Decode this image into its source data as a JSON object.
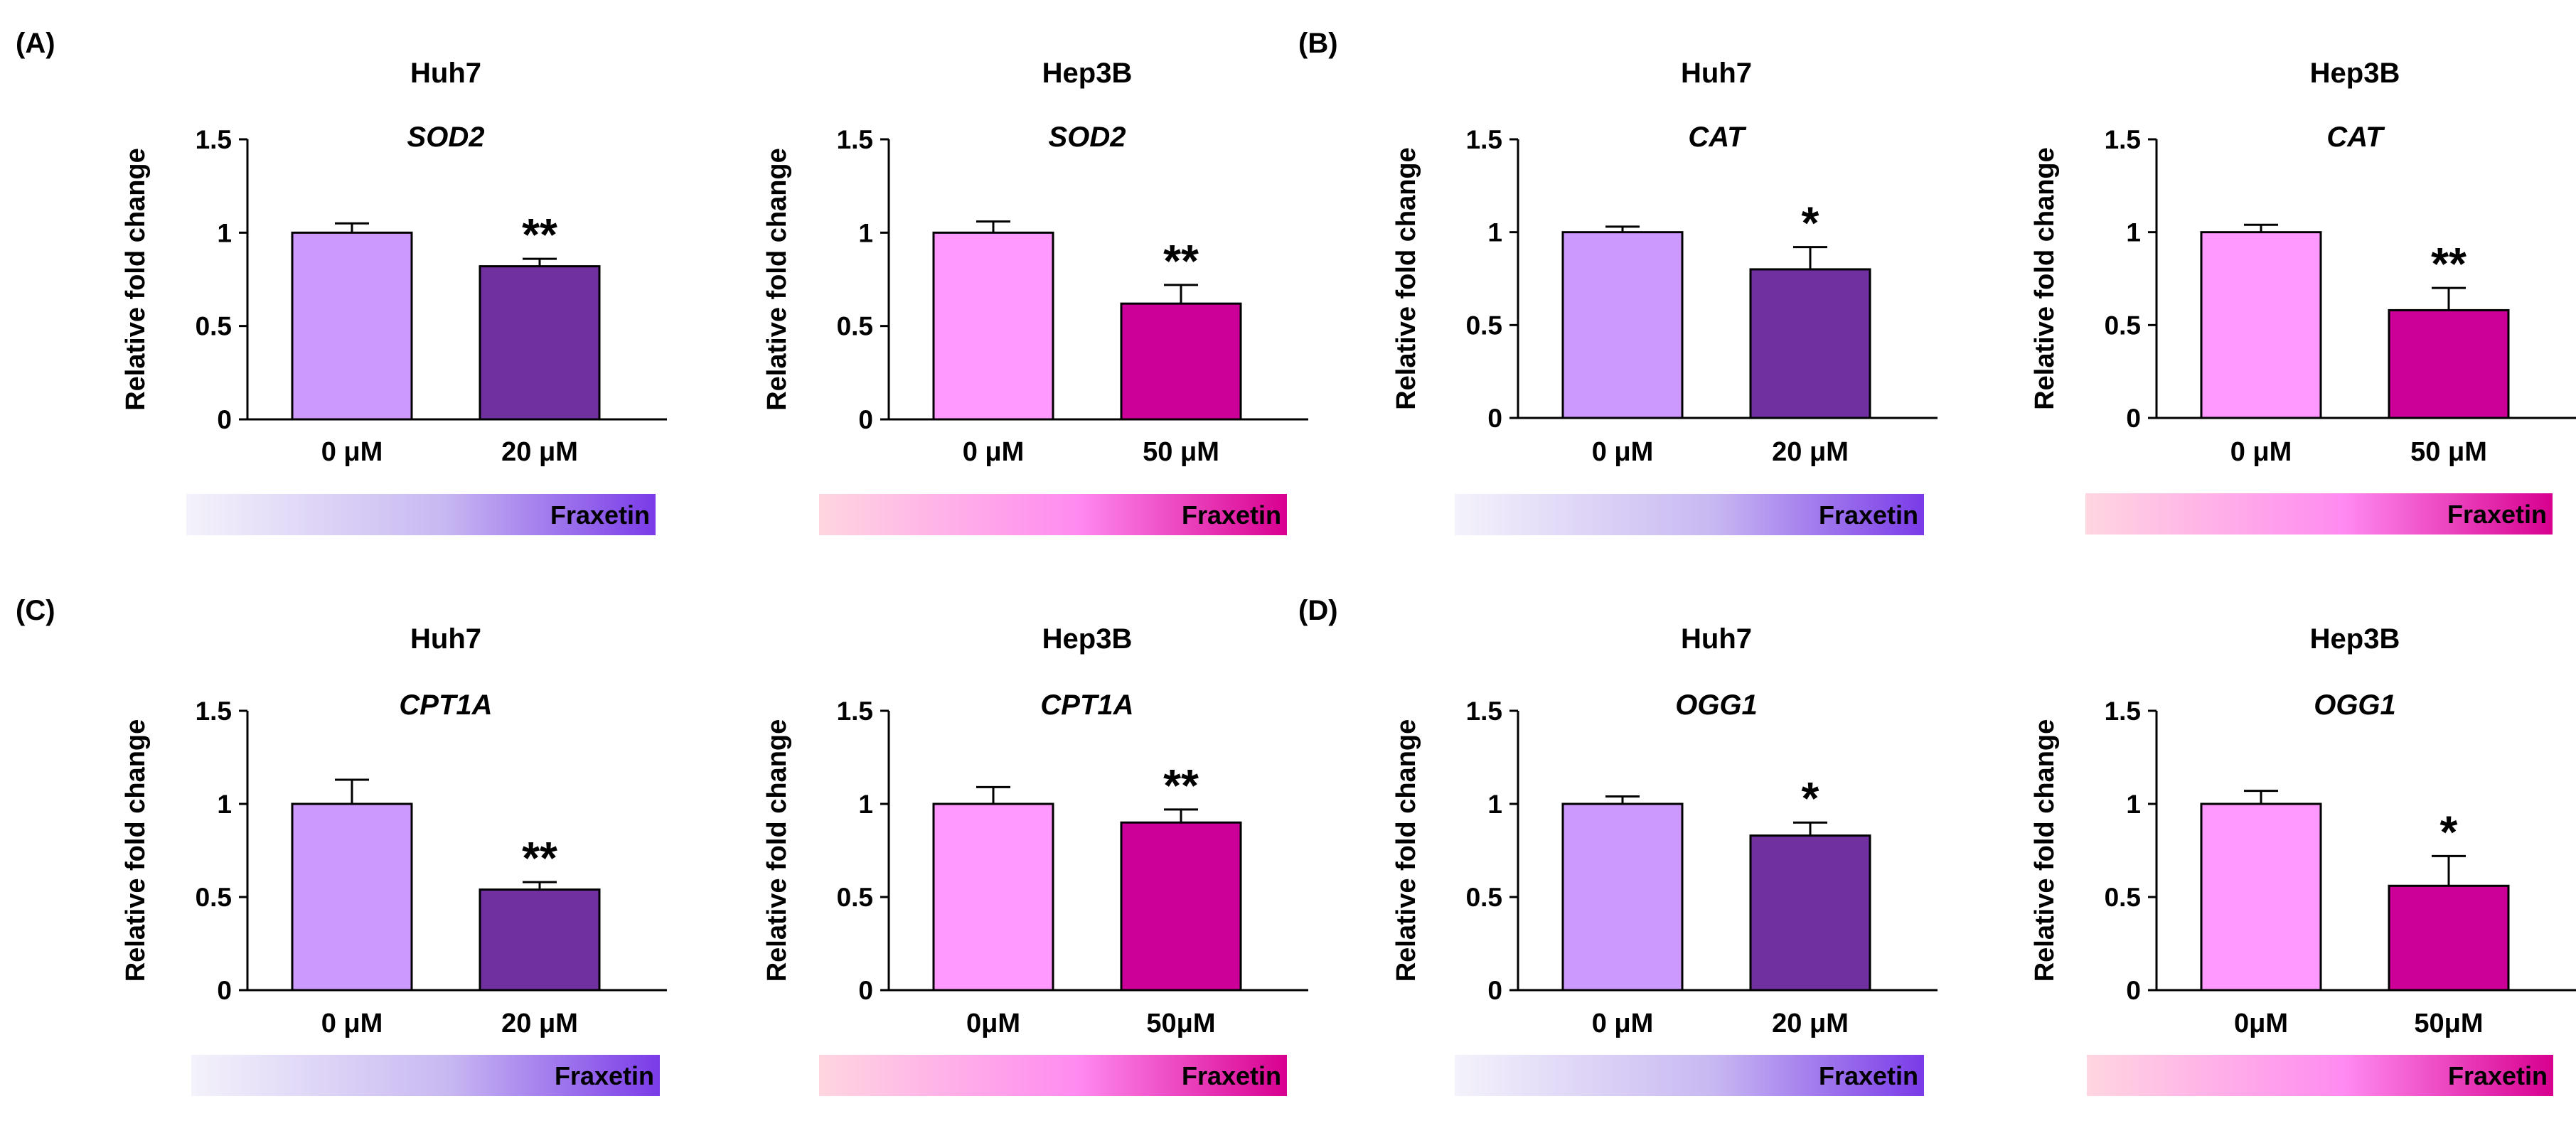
{
  "panel_labels": [
    "(A)",
    "(B)",
    "(C)",
    "(D)"
  ],
  "treatment_label": "Fraxetin",
  "colors": {
    "huh7_control": "#cc99ff",
    "huh7_treated": "#7030a0",
    "hep3b_control": "#ff99ff",
    "hep3b_treated": "#cc0099",
    "huh7_gradient": [
      "#f4f2fb",
      "#c8b8f2",
      "#7a3be8"
    ],
    "hep3b_gradient": [
      "#ffd6e0",
      "#ff8bf0",
      "#d8008f"
    ]
  },
  "chart_data": [
    {
      "type": "bar",
      "cell_line": "Huh7",
      "gene": "SOD2",
      "ylabel": "Relative fold change",
      "categories": [
        "0 μM",
        "20 μM"
      ],
      "values": [
        1.0,
        0.82
      ],
      "errors": [
        0.05,
        0.04
      ],
      "significance": [
        "",
        "**"
      ],
      "ylim": [
        0,
        1.5
      ],
      "yticks": [
        "0",
        "0.5",
        "1",
        "1.5"
      ],
      "palette": "huh7"
    },
    {
      "type": "bar",
      "cell_line": "Hep3B",
      "gene": "SOD2",
      "ylabel": "Relative fold change",
      "categories": [
        "0 μM",
        "50 μM"
      ],
      "values": [
        1.0,
        0.62
      ],
      "errors": [
        0.06,
        0.1
      ],
      "significance": [
        "",
        "**"
      ],
      "ylim": [
        0,
        1.5
      ],
      "yticks": [
        "0",
        "0.5",
        "1",
        "1.5"
      ],
      "palette": "hep3b"
    },
    {
      "type": "bar",
      "cell_line": "Huh7",
      "gene": "CAT",
      "ylabel": "Relative fold change",
      "categories": [
        "0 μM",
        "20 μM"
      ],
      "values": [
        1.0,
        0.8
      ],
      "errors": [
        0.03,
        0.12
      ],
      "significance": [
        "",
        "*"
      ],
      "ylim": [
        0,
        1.5
      ],
      "yticks": [
        "0",
        "0.5",
        "1",
        "1.5"
      ],
      "palette": "huh7"
    },
    {
      "type": "bar",
      "cell_line": "Hep3B",
      "gene": "CAT",
      "ylabel": "Relative fold change",
      "categories": [
        "0 μM",
        "50 μM"
      ],
      "values": [
        1.0,
        0.58
      ],
      "errors": [
        0.04,
        0.12
      ],
      "significance": [
        "",
        "**"
      ],
      "ylim": [
        0,
        1.5
      ],
      "yticks": [
        "0",
        "0.5",
        "1",
        "1.5"
      ],
      "palette": "hep3b"
    },
    {
      "type": "bar",
      "cell_line": "Huh7",
      "gene": "CPT1A",
      "ylabel": "Relative fold change",
      "categories": [
        "0 μM",
        "20 μM"
      ],
      "values": [
        1.0,
        0.54
      ],
      "errors": [
        0.13,
        0.04
      ],
      "significance": [
        "",
        "**"
      ],
      "ylim": [
        0,
        1.5
      ],
      "yticks": [
        "0",
        "0.5",
        "1",
        "1.5"
      ],
      "palette": "huh7"
    },
    {
      "type": "bar",
      "cell_line": "Hep3B",
      "gene": "CPT1A",
      "ylabel": "Relative fold change",
      "categories": [
        "0μM",
        "50μM"
      ],
      "values": [
        1.0,
        0.9
      ],
      "errors": [
        0.09,
        0.07
      ],
      "significance": [
        "",
        "**"
      ],
      "ylim": [
        0,
        1.5
      ],
      "yticks": [
        "0",
        "0.5",
        "1",
        "1.5"
      ],
      "palette": "hep3b"
    },
    {
      "type": "bar",
      "cell_line": "Huh7",
      "gene": "OGG1",
      "ylabel": "Relative fold change",
      "categories": [
        "0 μM",
        "20 μM"
      ],
      "values": [
        1.0,
        0.83
      ],
      "errors": [
        0.04,
        0.07
      ],
      "significance": [
        "",
        "*"
      ],
      "ylim": [
        0,
        1.5
      ],
      "yticks": [
        "0",
        "0.5",
        "1",
        "1.5"
      ],
      "palette": "huh7"
    },
    {
      "type": "bar",
      "cell_line": "Hep3B",
      "gene": "OGG1",
      "ylabel": "Relative fold change",
      "categories": [
        "0μM",
        "50μM"
      ],
      "values": [
        1.0,
        0.56
      ],
      "errors": [
        0.07,
        0.16
      ],
      "significance": [
        "",
        "*"
      ],
      "ylim": [
        0,
        1.5
      ],
      "yticks": [
        "0",
        "0.5",
        "1",
        "1.5"
      ],
      "palette": "hep3b"
    }
  ]
}
